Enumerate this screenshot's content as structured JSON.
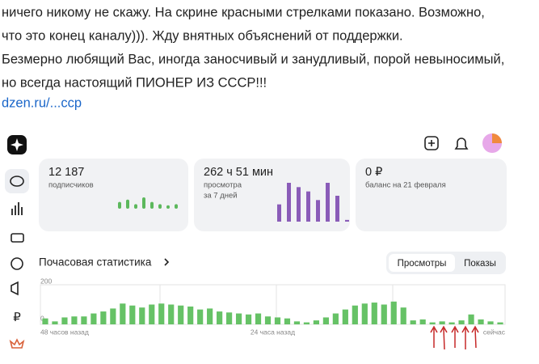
{
  "post": {
    "lines": [
      "ничего никому не скажу. На скрине красными стрелками показано. Возможно,",
      "что это конец каналу))). Жду внятных объяснений от поддержки.",
      "Безмерно любящий Вас, иногда заносчивый и занудливый, порой невыносимый,",
      "но всегда настоящий ПИОНЕР ИЗ СССР!!!"
    ],
    "link": "dzen.ru/...ccp"
  },
  "cards": [
    {
      "value": "12 187",
      "label": "подписчиков",
      "sublabel": null,
      "color": "#5cb85c",
      "spark": [
        6,
        8,
        4,
        10,
        6,
        4,
        3,
        4
      ]
    },
    {
      "value": "262 ч 51 мин",
      "label": "просмотра",
      "sublabel": "за 7 дней",
      "color": "#8a5cb8",
      "spark": [
        20,
        45,
        40,
        35,
        25,
        45,
        30,
        2
      ]
    },
    {
      "value": "0 ₽",
      "label": "баланс на 21 февраля",
      "sublabel": null,
      "color": null,
      "spark": null
    }
  ],
  "section_title": "Почасовая статистика",
  "tabs": [
    "Просмотры",
    "Показы"
  ],
  "chart_data": {
    "type": "bar",
    "color": "#66c266",
    "values": [
      30,
      15,
      35,
      40,
      40,
      55,
      65,
      80,
      105,
      95,
      85,
      100,
      105,
      100,
      95,
      90,
      75,
      80,
      65,
      60,
      55,
      50,
      55,
      40,
      35,
      30,
      15,
      10,
      20,
      35,
      55,
      75,
      95,
      105,
      110,
      100,
      115,
      85,
      20,
      25,
      10,
      15,
      10,
      20,
      50,
      25,
      15,
      10
    ],
    "ylim": [
      0,
      200
    ],
    "yticks": [
      0,
      200
    ],
    "x_labels": [
      "48 часов назад",
      "24 часа назад",
      "сейчас"
    ]
  }
}
